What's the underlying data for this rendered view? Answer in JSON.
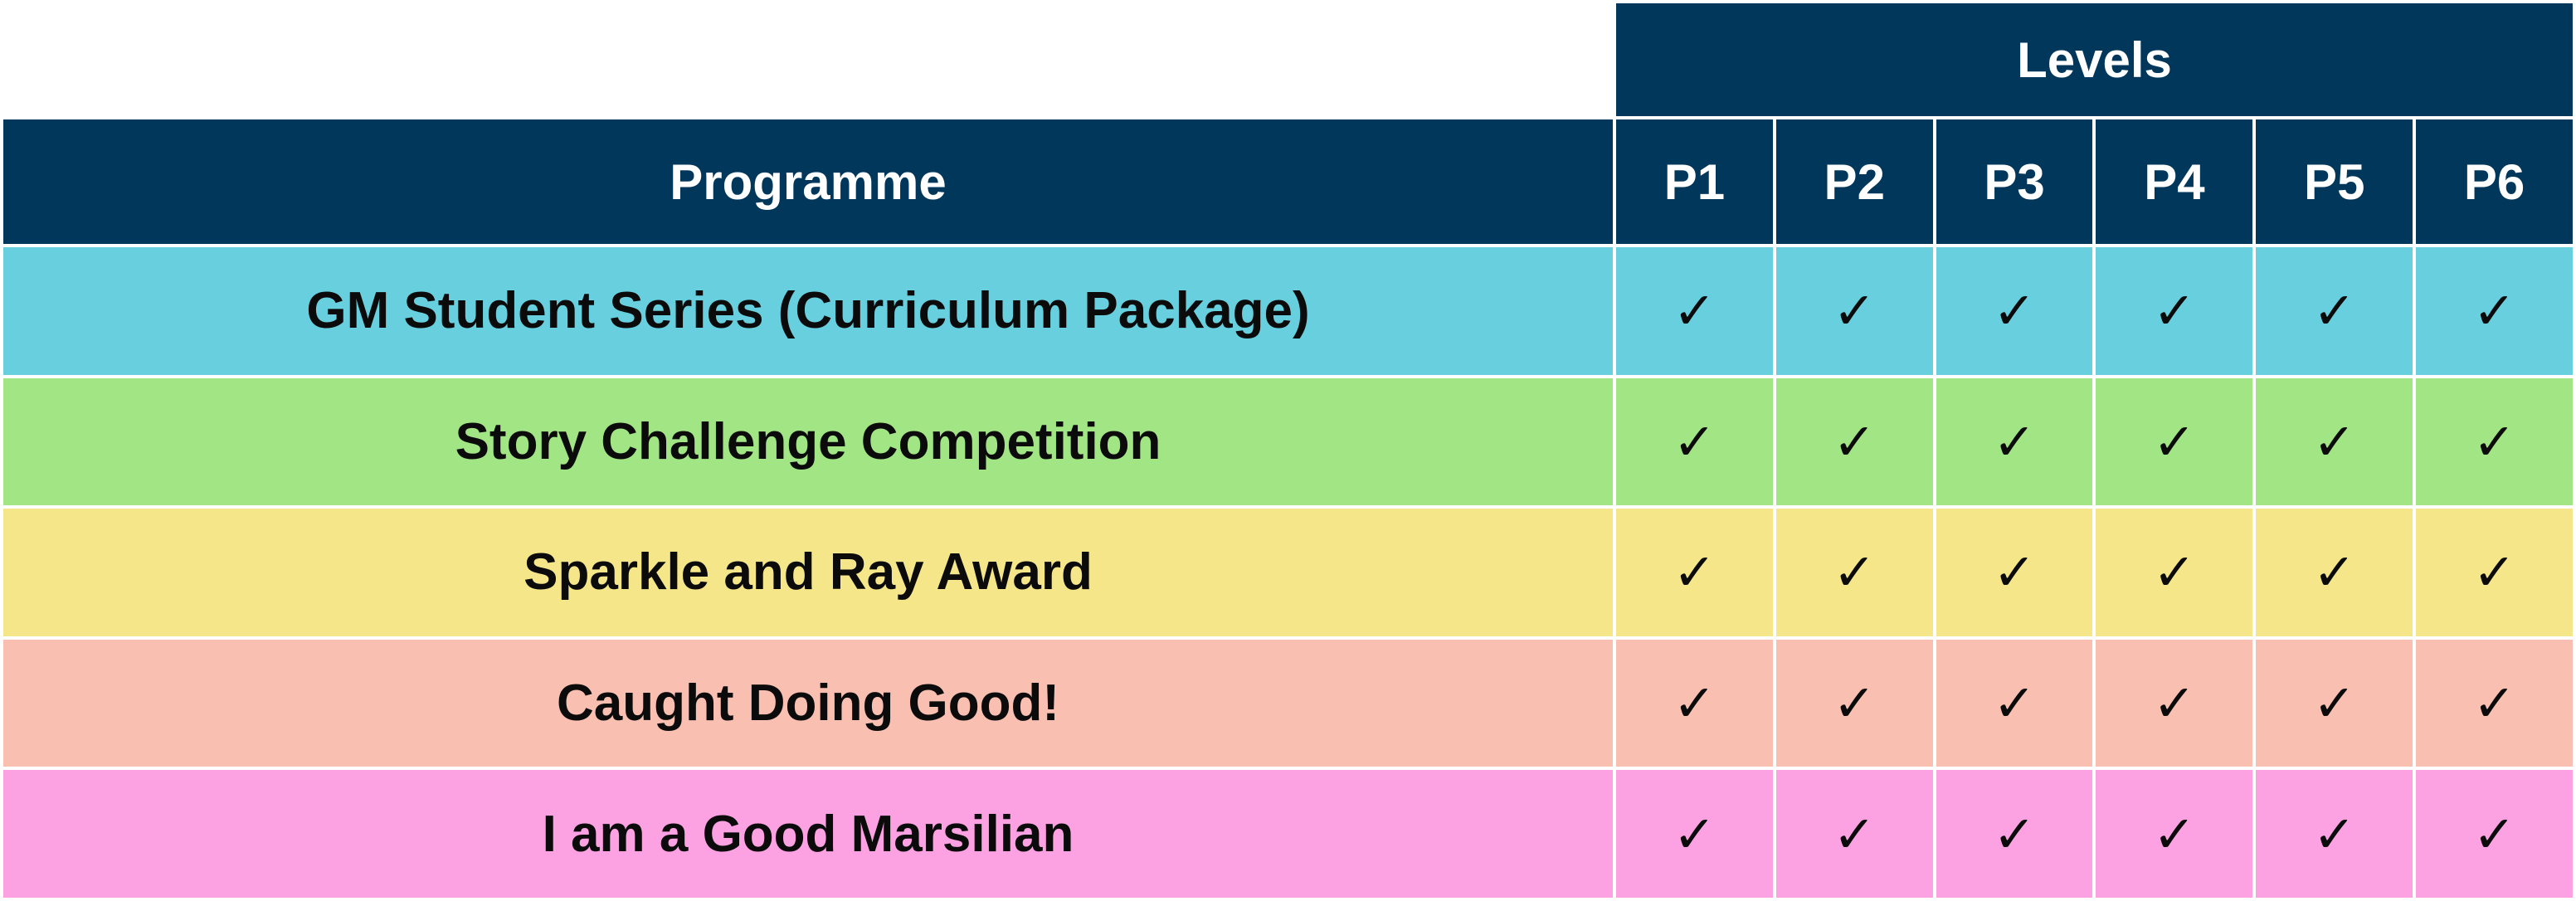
{
  "header": {
    "levels_label": "Levels",
    "programme_label": "Programme",
    "levels": [
      "P1",
      "P2",
      "P3",
      "P4",
      "P5",
      "P6"
    ]
  },
  "rows": [
    {
      "name": "GM Student Series (Curriculum Package)",
      "color": "#67cfde",
      "marks": [
        "✓",
        "✓",
        "✓",
        "✓",
        "✓",
        "✓"
      ]
    },
    {
      "name": "Story Challenge Competition",
      "color": "#a2e584",
      "marks": [
        "✓",
        "✓",
        "✓",
        "✓",
        "✓",
        "✓"
      ]
    },
    {
      "name": "Sparkle and Ray Award",
      "color": "#f5e68a",
      "marks": [
        "✓",
        "✓",
        "✓",
        "✓",
        "✓",
        "✓"
      ]
    },
    {
      "name": "Caught Doing Good!",
      "color": "#f9bfb1",
      "marks": [
        "✓",
        "✓",
        "✓",
        "✓",
        "✓",
        "✓"
      ]
    },
    {
      "name": "I am a Good Marsilian",
      "color": "#fca1e2",
      "marks": [
        "✓",
        "✓",
        "✓",
        "✓",
        "✓",
        "✓"
      ]
    }
  ],
  "colors": {
    "header_bg": "#02375c",
    "header_text": "#ffffff"
  }
}
